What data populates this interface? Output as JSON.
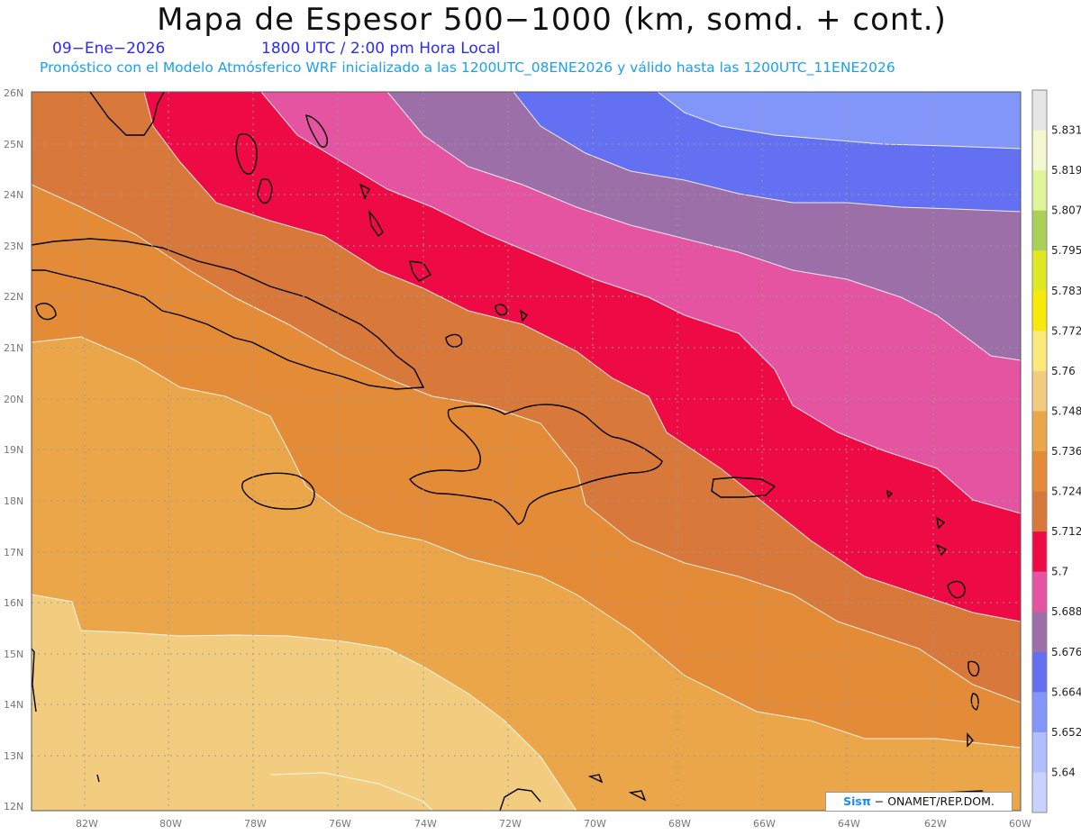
{
  "header": {
    "title": "Mapa de Espesor 500−1000 (km, somd. + cont.)",
    "date": "09−Ene−2026",
    "time": "1800 UTC / 2:00 pm Hora Local",
    "subtitle": "Pronóstico con el Modelo Atmósferico WRF inicializado a las 1200UTC_08ENE2026 y válido hasta las  1200UTC_11ENE2026"
  },
  "map": {
    "lat_labels": [
      "26N",
      "25N",
      "24N",
      "23N",
      "22N",
      "21N",
      "20N",
      "19N",
      "18N",
      "17N",
      "16N",
      "15N",
      "14N",
      "13N",
      "12N"
    ],
    "lon_labels": [
      "82W",
      "80W",
      "78W",
      "76W",
      "74W",
      "72W",
      "70W",
      "68W",
      "66W",
      "64W",
      "62W",
      "60W"
    ],
    "grid": true,
    "bands": [
      {
        "name": "5.76",
        "color": "#fde87a"
      },
      {
        "name": "5.748",
        "color": "#f2cd80"
      },
      {
        "name": "5.736",
        "color": "#eca64a"
      },
      {
        "name": "5.724",
        "color": "#e48b38"
      },
      {
        "name": "5.712",
        "color": "#d8783a"
      },
      {
        "name": "5.7",
        "color": "#ee0a45"
      },
      {
        "name": "5.688",
        "color": "#e554a0"
      },
      {
        "name": "5.676",
        "color": "#9c6fa8"
      },
      {
        "name": "5.664",
        "color": "#6470f2"
      },
      {
        "name": "5.652",
        "color": "#8296fa"
      }
    ]
  },
  "colorbar": {
    "labels": [
      "5.831",
      "5.819",
      "5.807",
      "5.795",
      "5.783",
      "5.772",
      "5.76",
      "5.748",
      "5.736",
      "5.724",
      "5.712",
      "5.7",
      "5.688",
      "5.676",
      "5.664",
      "5.652",
      "5.64"
    ],
    "colors": [
      "#e6e6e6",
      "#f4f8d0",
      "#e0f49c",
      "#aad05a",
      "#dfe822",
      "#f8ea08",
      "#fde87a",
      "#f2cd80",
      "#eca64a",
      "#e48b38",
      "#d8783a",
      "#ee0a45",
      "#e554a0",
      "#9c6fa8",
      "#6470f2",
      "#8296fa",
      "#aebefe",
      "#c8d2fc"
    ]
  },
  "credit": {
    "brand": "Sisπ",
    "org": "− ONAMET/REP.DOM."
  }
}
